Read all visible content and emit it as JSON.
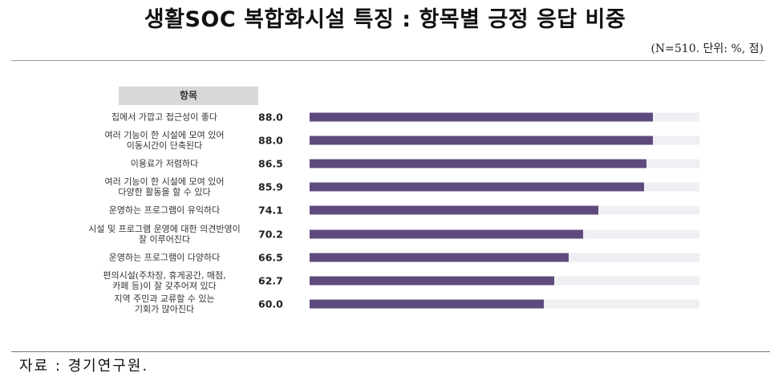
{
  "header": {
    "title": "생활SOC 복합화시설 특징 : 항목별 긍정 응답 비중",
    "unit_note": "(N=510. 단위: %, 점)"
  },
  "table": {
    "column_header": "항목"
  },
  "footer": {
    "source": "자료 : 경기연구원."
  },
  "colors": {
    "bar": "#5e4a7d",
    "track": "#efeff3",
    "header_bg": "#d8d8d8"
  },
  "rows": [
    {
      "label_lines": [
        "집에서 가깝고 접근성이 좋다"
      ],
      "value": "88.0",
      "num": 88.0
    },
    {
      "label_lines": [
        "여러 기능이 한 시설에 모여 있어",
        "이동시간이 단축된다"
      ],
      "value": "88.0",
      "num": 88.0
    },
    {
      "label_lines": [
        "이용료가 저렴하다"
      ],
      "value": "86.5",
      "num": 86.5
    },
    {
      "label_lines": [
        "여러 기능이 한 시설에 모여 있어",
        "다양한 활동을 할 수 있다"
      ],
      "value": "85.9",
      "num": 85.9
    },
    {
      "label_lines": [
        "운영하는 프로그램이 유익하다"
      ],
      "value": "74.1",
      "num": 74.1
    },
    {
      "label_lines": [
        "시설 및 프로그램 운영에 대한 의견반영이",
        "잘 이루어진다"
      ],
      "value": "70.2",
      "num": 70.2
    },
    {
      "label_lines": [
        "운영하는 프로그램이 다양하다"
      ],
      "value": "66.5",
      "num": 66.5
    },
    {
      "label_lines": [
        "편의시설(주차장, 휴게공간, 매점,",
        "카페 등)이 잘 갖추어져 있다"
      ],
      "value": "62.7",
      "num": 62.7
    },
    {
      "label_lines": [
        "지역 주민과 교류할 수 있는",
        "기회가 많아진다"
      ],
      "value": "60.0",
      "num": 60.0
    }
  ],
  "chart_data": {
    "type": "bar",
    "orientation": "horizontal",
    "title": "생활SOC 복합화시설 특징 : 항목별 긍정 응답 비중",
    "subtitle": "(N=510. 단위: %, 점)",
    "xlabel": "",
    "ylabel": "항목",
    "xlim": [
      0,
      100
    ],
    "grid": false,
    "legend": null,
    "categories": [
      "집에서 가깝고 접근성이 좋다",
      "여러 기능이 한 시설에 모여 있어 이동시간이 단축된다",
      "이용료가 저렴하다",
      "여러 기능이 한 시설에 모여 있어 다양한 활동을 할 수 있다",
      "운영하는 프로그램이 유익하다",
      "시설 및 프로그램 운영에 대한 의견반영이 잘 이루어진다",
      "운영하는 프로그램이 다양하다",
      "편의시설(주차장, 휴게공간, 매점, 카페 등)이 잘 갖추어져 있다",
      "지역 주민과 교류할 수 있는 기회가 많아진다"
    ],
    "values": [
      88.0,
      88.0,
      86.5,
      85.9,
      74.1,
      70.2,
      66.5,
      62.7,
      60.0
    ],
    "source": "자료 : 경기연구원."
  }
}
